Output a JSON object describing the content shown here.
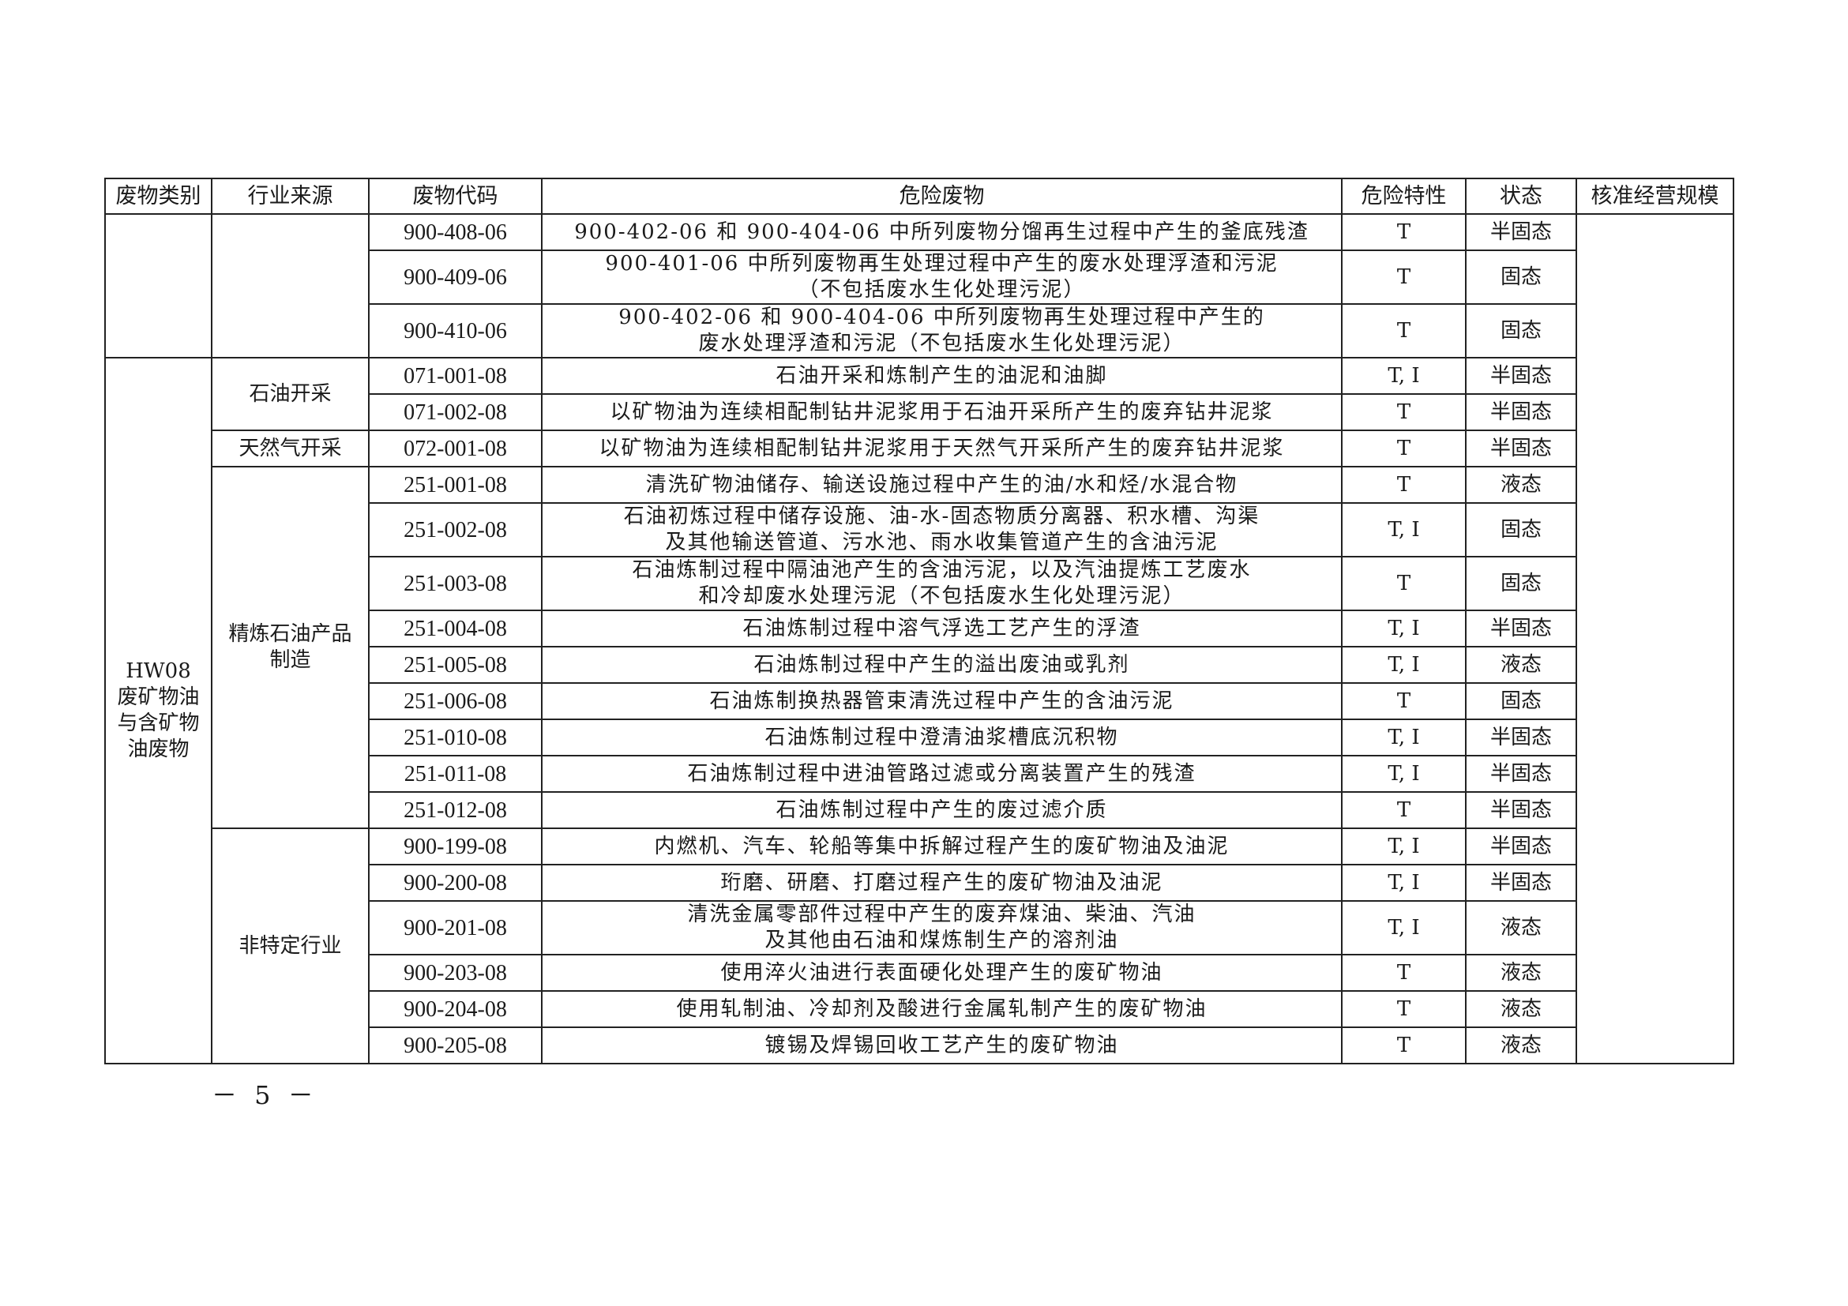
{
  "headers": [
    "废物类别",
    "行业来源",
    "废物代码",
    "危险废物",
    "危险特性",
    "状态",
    "核准经营规模"
  ],
  "groups": [
    {
      "category": "",
      "sources": [
        {
          "name": "",
          "rows": [
            {
              "code": "900-408-06",
              "desc": "900-402-06 和 900-404-06 中所列废物分馏再生过程中产生的釜底残渣",
              "hazard": "T",
              "state": "半固态"
            },
            {
              "code": "900-409-06",
              "desc": "900-401-06 中所列废物再生处理过程中产生的废水处理浮渣和污泥\n（不包括废水生化处理污泥）",
              "hazard": "T",
              "state": "固态"
            },
            {
              "code": "900-410-06",
              "desc": "900-402-06 和 900-404-06 中所列废物再生处理过程中产生的\n废水处理浮渣和污泥（不包括废水生化处理污泥）",
              "hazard": "T",
              "state": "固态"
            }
          ]
        }
      ]
    },
    {
      "category": "HW08\n废矿物油\n与含矿物\n油废物",
      "sources": [
        {
          "name": "石油开采",
          "rows": [
            {
              "code": "071-001-08",
              "desc": "石油开采和炼制产生的油泥和油脚",
              "hazard": "T, I",
              "state": "半固态"
            },
            {
              "code": "071-002-08",
              "desc": "以矿物油为连续相配制钻井泥浆用于石油开采所产生的废弃钻井泥浆",
              "hazard": "T",
              "state": "半固态"
            }
          ]
        },
        {
          "name": "天然气开采",
          "rows": [
            {
              "code": "072-001-08",
              "desc": "以矿物油为连续相配制钻井泥浆用于天然气开采所产生的废弃钻井泥浆",
              "hazard": "T",
              "state": "半固态"
            }
          ]
        },
        {
          "name": "精炼石油产品\n制造",
          "rows": [
            {
              "code": "251-001-08",
              "desc": "清洗矿物油储存、输送设施过程中产生的油/水和烃/水混合物",
              "hazard": "T",
              "state": "液态"
            },
            {
              "code": "251-002-08",
              "desc": "石油初炼过程中储存设施、油-水-固态物质分离器、积水槽、沟渠\n及其他输送管道、污水池、雨水收集管道产生的含油污泥",
              "hazard": "T, I",
              "state": "固态"
            },
            {
              "code": "251-003-08",
              "desc": "石油炼制过程中隔油池产生的含油污泥，以及汽油提炼工艺废水\n和冷却废水处理污泥（不包括废水生化处理污泥）",
              "hazard": "T",
              "state": "固态"
            },
            {
              "code": "251-004-08",
              "desc": "石油炼制过程中溶气浮选工艺产生的浮渣",
              "hazard": "T, I",
              "state": "半固态"
            },
            {
              "code": "251-005-08",
              "desc": "石油炼制过程中产生的溢出废油或乳剂",
              "hazard": "T, I",
              "state": "液态"
            },
            {
              "code": "251-006-08",
              "desc": "石油炼制换热器管束清洗过程中产生的含油污泥",
              "hazard": "T",
              "state": "固态"
            },
            {
              "code": "251-010-08",
              "desc": "石油炼制过程中澄清油浆槽底沉积物",
              "hazard": "T, I",
              "state": "半固态"
            },
            {
              "code": "251-011-08",
              "desc": "石油炼制过程中进油管路过滤或分离装置产生的残渣",
              "hazard": "T, I",
              "state": "半固态"
            },
            {
              "code": "251-012-08",
              "desc": "石油炼制过程中产生的废过滤介质",
              "hazard": "T",
              "state": "半固态"
            }
          ]
        },
        {
          "name": "非特定行业",
          "rows": [
            {
              "code": "900-199-08",
              "desc": "内燃机、汽车、轮船等集中拆解过程产生的废矿物油及油泥",
              "hazard": "T, I",
              "state": "半固态"
            },
            {
              "code": "900-200-08",
              "desc": "珩磨、研磨、打磨过程产生的废矿物油及油泥",
              "hazard": "T, I",
              "state": "半固态"
            },
            {
              "code": "900-201-08",
              "desc": "清洗金属零部件过程中产生的废弃煤油、柴油、汽油\n及其他由石油和煤炼制生产的溶剂油",
              "hazard": "T, I",
              "state": "液态"
            },
            {
              "code": "900-203-08",
              "desc": "使用淬火油进行表面硬化处理产生的废矿物油",
              "hazard": "T",
              "state": "液态"
            },
            {
              "code": "900-204-08",
              "desc": "使用轧制油、冷却剂及酸进行金属轧制产生的废矿物油",
              "hazard": "T",
              "state": "液态"
            },
            {
              "code": "900-205-08",
              "desc": "镀锡及焊锡回收工艺产生的废矿物油",
              "hazard": "T",
              "state": "液态"
            }
          ]
        }
      ]
    }
  ],
  "capacity": "",
  "page_number": "－ 5 －"
}
